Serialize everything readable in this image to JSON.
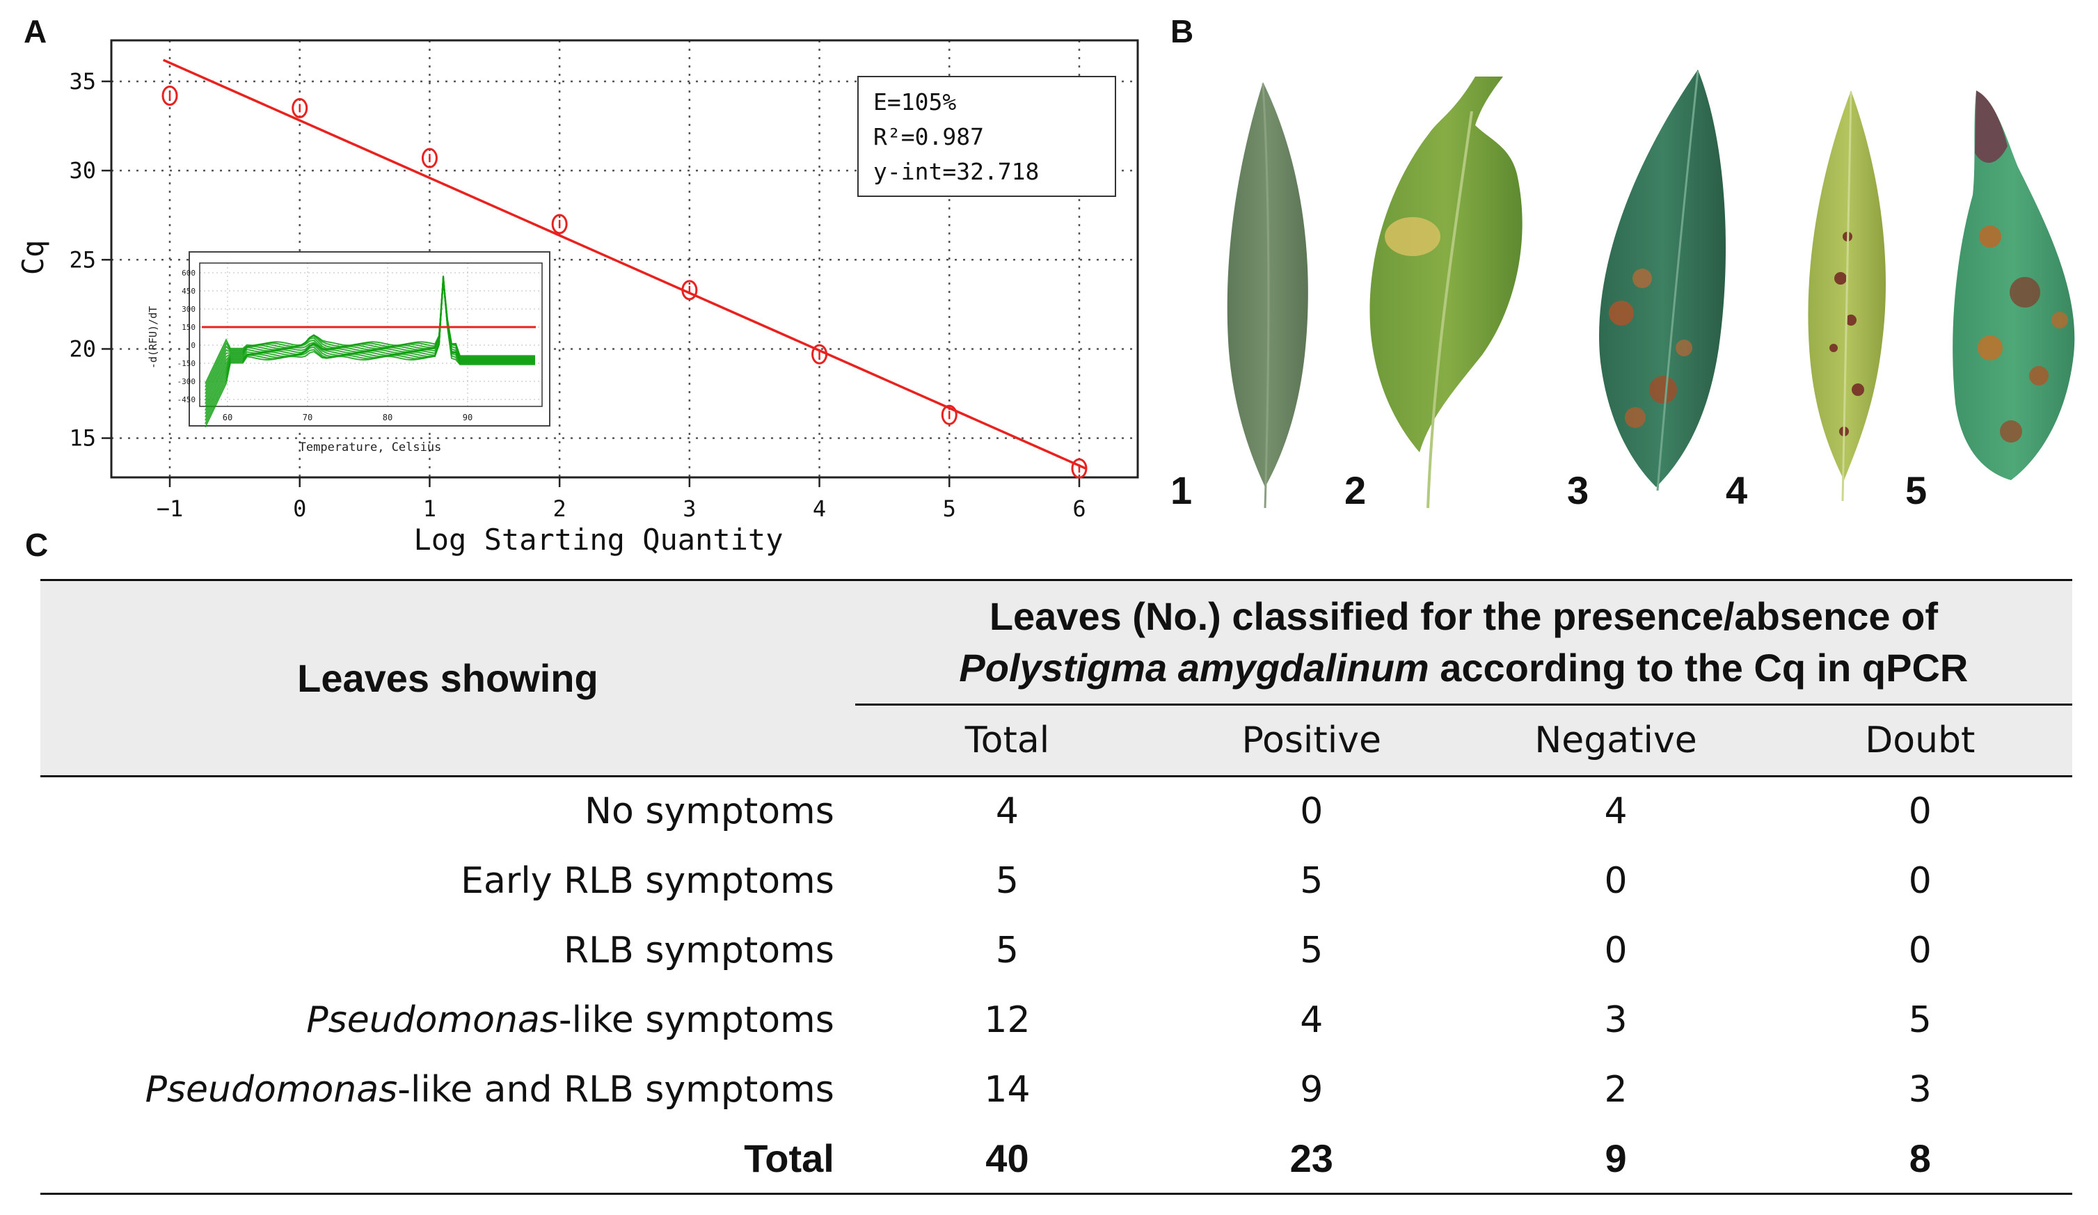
{
  "panels": {
    "a_label": "A",
    "b_label": "B",
    "c_label": "C"
  },
  "chart_data": {
    "type": "scatter",
    "xlabel": "Log Starting Quantity",
    "ylabel": "Cq",
    "xlim": [
      -1.45,
      6.45
    ],
    "ylim": [
      12.8,
      37.3
    ],
    "xticks": [
      -1,
      0,
      1,
      2,
      3,
      4,
      5,
      6
    ],
    "yticks": [
      15,
      20,
      25,
      30,
      35
    ],
    "grid": true,
    "points": {
      "x": [
        -1,
        0,
        1,
        2,
        3,
        4,
        5,
        6
      ],
      "y": [
        34.2,
        33.5,
        30.7,
        27.0,
        23.3,
        19.7,
        16.3,
        13.3
      ]
    },
    "fit_line": {
      "x": [
        -1.05,
        6.05
      ],
      "y": [
        36.2,
        13.3
      ]
    },
    "annotation": [
      "E=105%",
      "R²=0.987",
      "y-int=32.718"
    ],
    "inset": {
      "xlabel": "Temperature, Celsius",
      "ylabel": "-d(RFU)/dT",
      "xticks": [
        "60",
        "70",
        "80",
        "90"
      ],
      "yticks": [
        "600",
        "450",
        "300",
        "150",
        "0",
        "-150",
        "-300",
        "-450"
      ],
      "threshold_color": "#e8221f",
      "curve_color": "#12a012"
    }
  },
  "colors": {
    "point": "#e8221f",
    "fit_line": "#e8221f",
    "table_header_bg": "#ececec"
  },
  "leaves": {
    "numbers": [
      "1",
      "2",
      "3",
      "4",
      "5"
    ]
  },
  "table": {
    "header_left": "Leaves showing",
    "group_header_line1": "Leaves (No.) classified for the presence/absence of",
    "group_header_line2_italic": "Polystigma amygdalinum",
    "group_header_line2_rest": " according to the Cq in qPCR",
    "columns": [
      "Total",
      "Positive",
      "Negative",
      "Doubt"
    ],
    "rows": [
      {
        "italic": "",
        "label": "No symptoms",
        "values": [
          "4",
          "0",
          "4",
          "0"
        ]
      },
      {
        "italic": "",
        "label": "Early RLB symptoms",
        "values": [
          "5",
          "5",
          "0",
          "0"
        ]
      },
      {
        "italic": "",
        "label": "RLB symptoms",
        "values": [
          "5",
          "5",
          "0",
          "0"
        ]
      },
      {
        "italic": "Pseudomonas",
        "label": "-like symptoms",
        "values": [
          "12",
          "4",
          "3",
          "5"
        ]
      },
      {
        "italic": "Pseudomonas",
        "label": "-like and RLB symptoms",
        "values": [
          "14",
          "9",
          "2",
          "3"
        ]
      }
    ],
    "total_row": {
      "label": "Total",
      "values": [
        "40",
        "23",
        "9",
        "8"
      ]
    }
  }
}
